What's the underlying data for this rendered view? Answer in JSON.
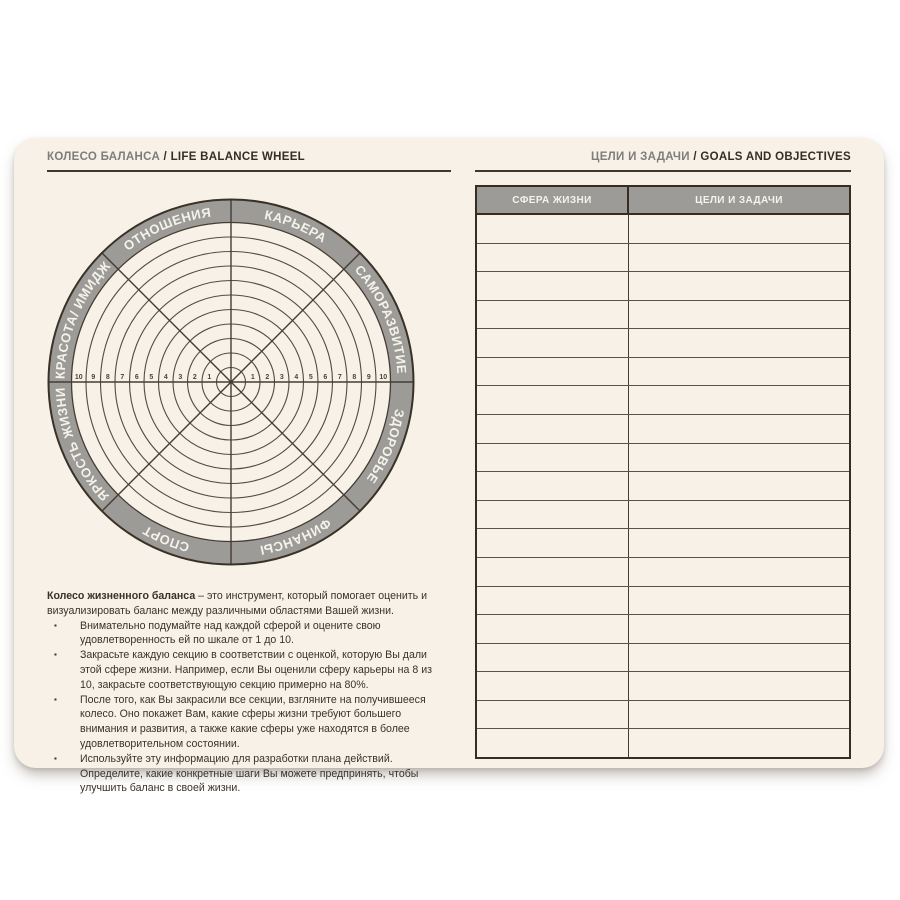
{
  "left_page": {
    "title_ru": "КОЛЕСО БАЛАНСА",
    "title_sep": " / ",
    "title_en": "LIFE BALANCE WHEEL",
    "wheel": {
      "sectors_clockwise_from_top": [
        "КАРЬЕРА",
        "САМОРАЗВИТИЕ",
        "ЗДОРОВЬЕ",
        "ФИНАНСЫ",
        "СПОРТ",
        "ЯРКОСТЬ ЖИЗНИ",
        "КРАСОТА/ ИМИДЖ",
        "ОТНОШЕНИЯ"
      ],
      "rings": 10,
      "scale_min": 1,
      "scale_max": 10
    },
    "instructions": {
      "intro_bold": "Колесо жизненного баланса",
      "intro_rest": " – это инструмент, который помогает оценить и визуализировать баланс между различными областями Вашей жизни.",
      "bullet_char": "▪",
      "bullets": [
        "Внимательно подумайте над каждой сферой и оцените свою удовлетворенность ей по шкале от 1 до 10.",
        "Закрасьте каждую секцию в соответствии с оценкой, которую Вы дали этой сфере жизни. Например, если Вы оценили сферу карьеры на 8 из 10, закрасьте соответствующую секцию примерно на 80%.",
        "После того, как Вы закрасили все секции, взгляните на получившееся колесо. Оно покажет Вам, какие сферы жизни требуют большего внимания и развития, а также какие сферы уже находятся в более удовлетворительном состоянии.",
        "Используйте эту информацию для разработки плана действий. Определите, какие конкретные шаги Вы можете предпринять, чтобы улучшить баланс в своей жизни."
      ]
    }
  },
  "right_page": {
    "title_ru": "ЦЕЛИ И ЗАДАЧИ",
    "title_sep": " / ",
    "title_en": "GOALS AND OBJECTIVES",
    "table": {
      "columns": [
        "СФЕРА ЖИЗНИ",
        "ЦЕЛИ И ЗАДАЧИ"
      ],
      "row_count": 19,
      "cell_value": ""
    }
  },
  "colors": {
    "page_bg": "#f7f1e8",
    "ring_gray": "#9c9b98",
    "line_dark": "#463c32",
    "text_dark": "#362d23",
    "title_gray": "#7e7d7a"
  }
}
